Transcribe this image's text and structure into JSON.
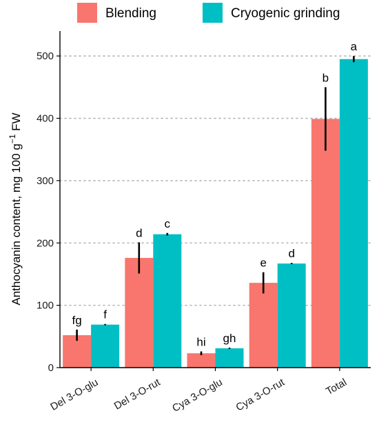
{
  "chart_data": {
    "type": "bar",
    "categories": [
      "Del 3-O-glu",
      "Del 3-O-rut",
      "Cya 3-O-glu",
      "Cya 3-O-rut",
      "Total"
    ],
    "series": [
      {
        "name": "Blending",
        "color": "#F8766D",
        "values": [
          52,
          176,
          23,
          136,
          399
        ],
        "error": [
          9,
          25,
          3,
          17,
          51
        ],
        "labels": [
          "fg",
          "d",
          "hi",
          "e",
          "b"
        ]
      },
      {
        "name": "Cryogenic grinding",
        "color": "#00BFC4",
        "values": [
          69,
          214,
          31,
          167,
          495
        ],
        "error": [
          1,
          2,
          1,
          1,
          5
        ],
        "labels": [
          "f",
          "c",
          "gh",
          "d",
          "a"
        ]
      }
    ],
    "yticks": [
      0,
      100,
      200,
      300,
      400,
      500
    ],
    "ylim": [
      0,
      540
    ],
    "ylabel": {
      "main": "Anthocyanin content, mg 100 g",
      "sup": "−1",
      "tail": " FW"
    },
    "grid": "horizontal dotted",
    "legend_position": "top"
  }
}
